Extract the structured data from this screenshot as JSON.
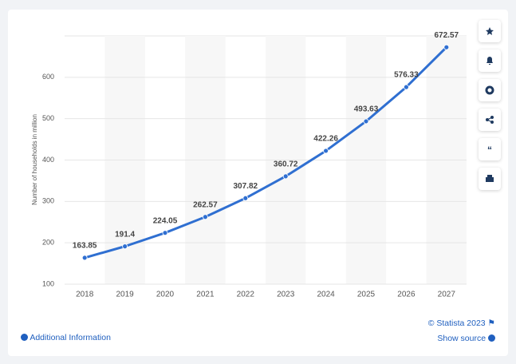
{
  "chart_data": {
    "type": "line",
    "ylabel": "Number of households in million",
    "categories": [
      "2018",
      "2019",
      "2020",
      "2021",
      "2022",
      "2023",
      "2024",
      "2025",
      "2026",
      "2027"
    ],
    "values": [
      163.85,
      191.4,
      224.05,
      262.57,
      307.82,
      360.72,
      422.26,
      493.63,
      576.33,
      672.57
    ],
    "color": "#2f6fd1",
    "ylim": [
      100,
      700
    ],
    "yticks": [
      100,
      200,
      300,
      400,
      500,
      600
    ],
    "grid": true
  },
  "footer": {
    "copyright": "© Statista 2023",
    "show_source": "Show source",
    "additional_info": "Additional Information"
  }
}
